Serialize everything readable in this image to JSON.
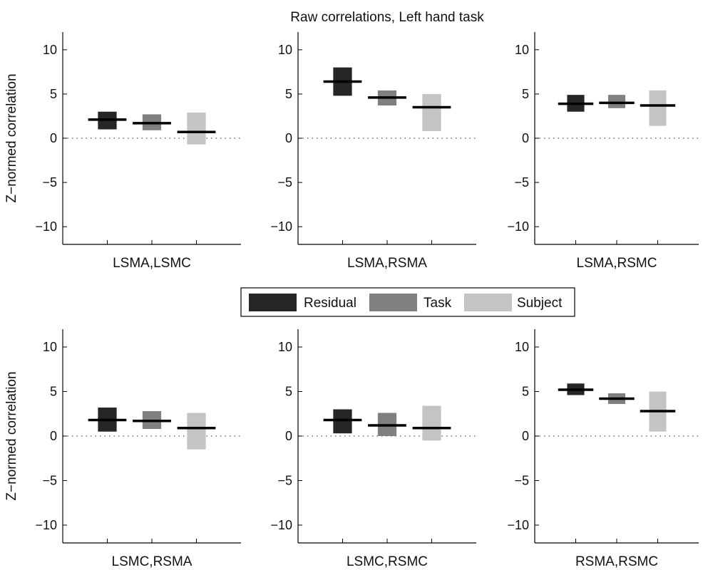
{
  "title": "Raw correlations, Left hand task",
  "legend": {
    "placement": "center, between rows",
    "items": [
      {
        "label": "Residual",
        "color": "#262626"
      },
      {
        "label": "Task",
        "color": "#808080"
      },
      {
        "label": "Subject",
        "color": "#c4c4c4"
      }
    ]
  },
  "chart_data": [
    {
      "type": "box",
      "xlabel": "LSMA,LSMC",
      "ylabel": "Z−normed correlation",
      "ylim": [
        -12,
        12
      ],
      "yticks": [
        10,
        5,
        0,
        -5,
        -10
      ],
      "ytick_labels": [
        "10",
        "5",
        "0",
        "−5",
        "−10"
      ],
      "zero_line": "dotted",
      "series": [
        {
          "name": "Residual",
          "low": 1.0,
          "high": 3.0,
          "mean": 2.1
        },
        {
          "name": "Task",
          "low": 0.9,
          "high": 2.7,
          "mean": 1.7
        },
        {
          "name": "Subject",
          "low": -0.7,
          "high": 2.9,
          "mean": 0.7
        }
      ]
    },
    {
      "type": "box",
      "xlabel": "LSMA,RSMA",
      "ylabel": "",
      "ylim": [
        -12,
        12
      ],
      "yticks": [
        10,
        5,
        0,
        -5,
        -10
      ],
      "ytick_labels": [
        "10",
        "5",
        "0",
        "−5",
        "−10"
      ],
      "zero_line": "dotted",
      "series": [
        {
          "name": "Residual",
          "low": 4.8,
          "high": 8.0,
          "mean": 6.4
        },
        {
          "name": "Task",
          "low": 3.7,
          "high": 5.4,
          "mean": 4.6
        },
        {
          "name": "Subject",
          "low": 0.8,
          "high": 5.0,
          "mean": 3.5
        }
      ]
    },
    {
      "type": "box",
      "xlabel": "LSMA,RSMC",
      "ylabel": "",
      "ylim": [
        -12,
        12
      ],
      "yticks": [
        10,
        5,
        0,
        -5,
        -10
      ],
      "ytick_labels": [
        "10",
        "5",
        "0",
        "−5",
        "−10"
      ],
      "zero_line": "dotted",
      "series": [
        {
          "name": "Residual",
          "low": 3.0,
          "high": 4.9,
          "mean": 3.9
        },
        {
          "name": "Task",
          "low": 3.4,
          "high": 4.9,
          "mean": 4.0
        },
        {
          "name": "Subject",
          "low": 1.4,
          "high": 5.4,
          "mean": 3.7
        }
      ]
    },
    {
      "type": "box",
      "xlabel": "LSMC,RSMA",
      "ylabel": "Z−normed correlation",
      "ylim": [
        -12,
        12
      ],
      "yticks": [
        10,
        5,
        0,
        -5,
        -10
      ],
      "ytick_labels": [
        "10",
        "5",
        "0",
        "−5",
        "−10"
      ],
      "zero_line": "dotted",
      "series": [
        {
          "name": "Residual",
          "low": 0.5,
          "high": 3.2,
          "mean": 1.8
        },
        {
          "name": "Task",
          "low": 0.8,
          "high": 2.8,
          "mean": 1.7
        },
        {
          "name": "Subject",
          "low": -1.5,
          "high": 2.6,
          "mean": 0.9
        }
      ]
    },
    {
      "type": "box",
      "xlabel": "LSMC,RSMC",
      "ylabel": "",
      "ylim": [
        -12,
        12
      ],
      "yticks": [
        10,
        5,
        0,
        -5,
        -10
      ],
      "ytick_labels": [
        "10",
        "5",
        "0",
        "−5",
        "−10"
      ],
      "zero_line": "dotted",
      "series": [
        {
          "name": "Residual",
          "low": 0.3,
          "high": 3.0,
          "mean": 1.8
        },
        {
          "name": "Task",
          "low": 0.0,
          "high": 2.6,
          "mean": 1.2
        },
        {
          "name": "Subject",
          "low": -0.5,
          "high": 3.4,
          "mean": 0.9
        }
      ]
    },
    {
      "type": "box",
      "xlabel": "RSMA,RSMC",
      "ylabel": "",
      "ylim": [
        -12,
        12
      ],
      "yticks": [
        10,
        5,
        0,
        -5,
        -10
      ],
      "ytick_labels": [
        "10",
        "5",
        "0",
        "−5",
        "−10"
      ],
      "zero_line": "dotted",
      "series": [
        {
          "name": "Residual",
          "low": 4.6,
          "high": 5.9,
          "mean": 5.2
        },
        {
          "name": "Task",
          "low": 3.6,
          "high": 4.8,
          "mean": 4.2
        },
        {
          "name": "Subject",
          "low": 0.5,
          "high": 5.0,
          "mean": 2.8
        }
      ]
    }
  ]
}
